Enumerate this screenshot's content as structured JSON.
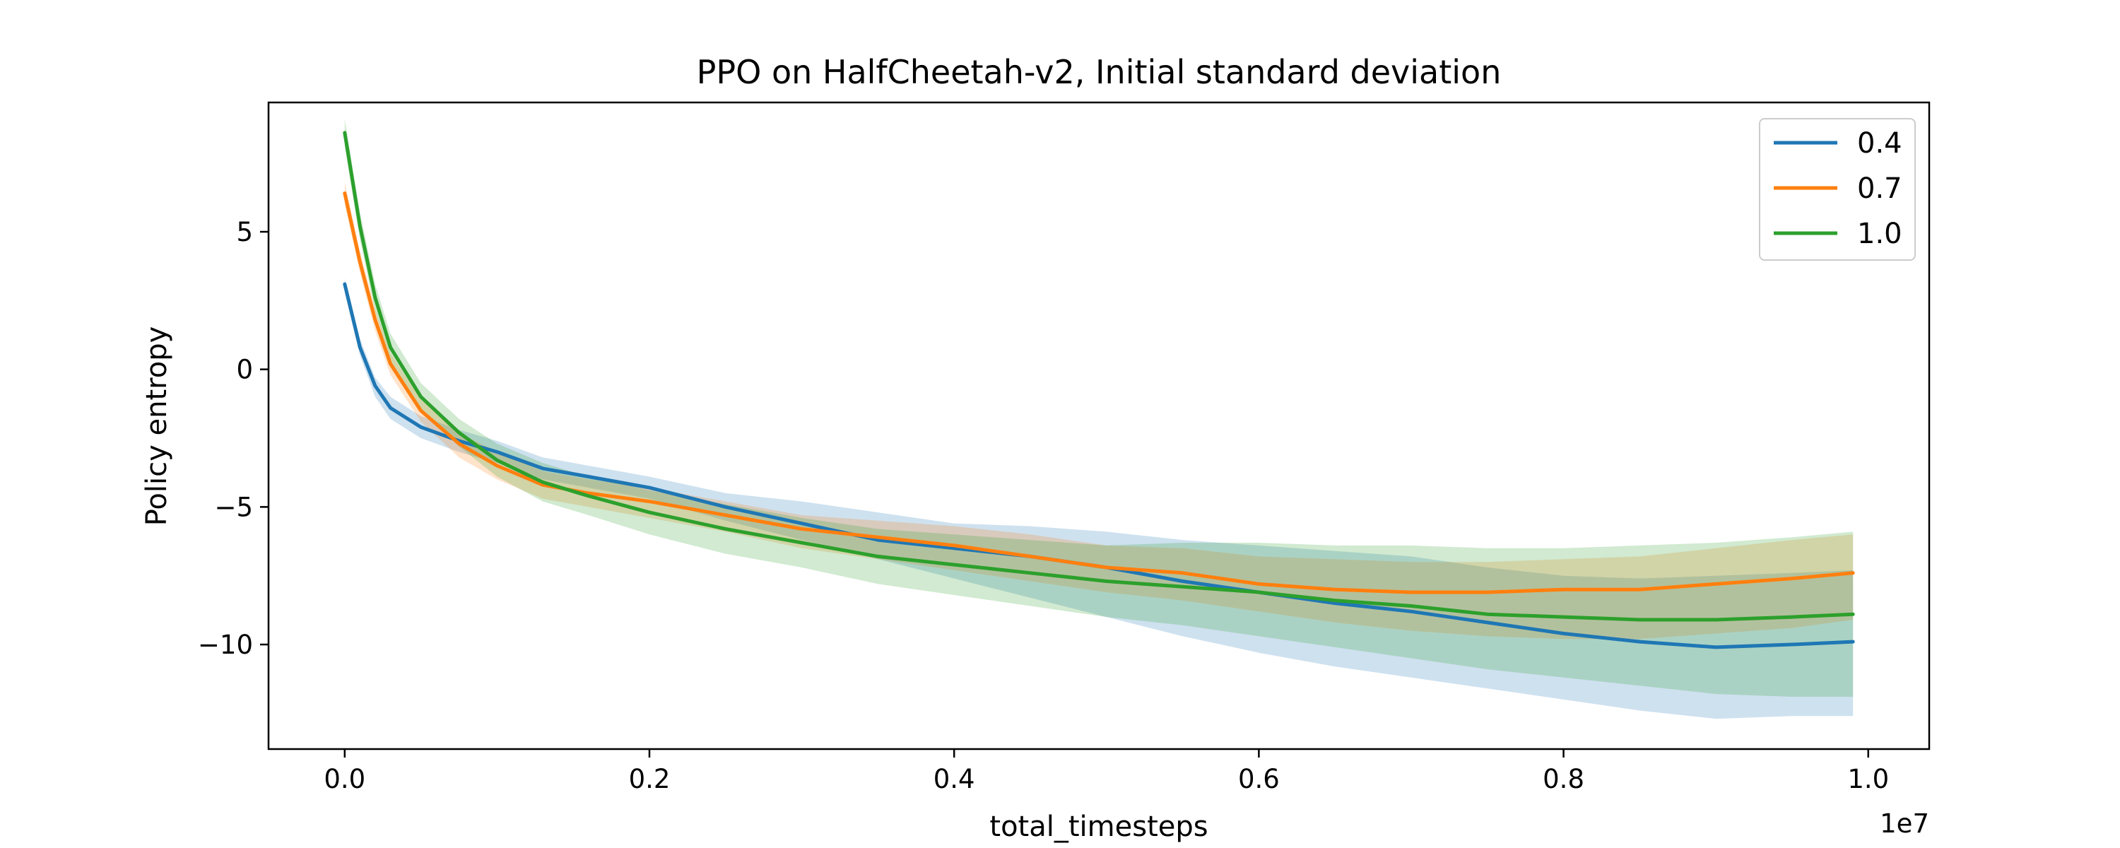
{
  "chart_data": {
    "type": "line",
    "title": "PPO on HalfCheetah-v2, Initial standard deviation",
    "xlabel": "total_timesteps",
    "ylabel": "Policy entropy",
    "x_offset_label": "1e7",
    "xlim": [
      -0.05,
      1.04
    ],
    "ylim": [
      -13.8,
      9.7
    ],
    "x_ticks": [
      0.0,
      0.2,
      0.4,
      0.6,
      0.8,
      1.0
    ],
    "x_tick_labels": [
      "0.0",
      "0.2",
      "0.4",
      "0.6",
      "0.8",
      "1.0"
    ],
    "y_ticks": [
      5,
      0,
      -5,
      -10
    ],
    "y_tick_labels": [
      "5",
      "0",
      "−5",
      "−10"
    ],
    "grid": false,
    "legend_position": "top-right",
    "x": [
      0.0,
      0.01,
      0.02,
      0.03,
      0.05,
      0.075,
      0.1,
      0.13,
      0.16,
      0.2,
      0.25,
      0.3,
      0.35,
      0.4,
      0.45,
      0.5,
      0.55,
      0.6,
      0.65,
      0.7,
      0.75,
      0.8,
      0.85,
      0.9,
      0.95,
      0.99
    ],
    "series": [
      {
        "name": "0.4",
        "color": "#1f77b4",
        "values": [
          3.1,
          0.8,
          -0.6,
          -1.4,
          -2.1,
          -2.6,
          -3.0,
          -3.6,
          -3.9,
          -4.3,
          -5.0,
          -5.6,
          -6.2,
          -6.5,
          -6.8,
          -7.2,
          -7.7,
          -8.1,
          -8.5,
          -8.8,
          -9.2,
          -9.6,
          -9.9,
          -10.1,
          -10.0,
          -9.9
        ],
        "lower": [
          2.8,
          0.5,
          -1.0,
          -1.8,
          -2.5,
          -3.0,
          -3.4,
          -4.0,
          -4.3,
          -4.7,
          -5.5,
          -6.2,
          -6.9,
          -7.6,
          -8.3,
          -9.0,
          -9.7,
          -10.3,
          -10.8,
          -11.2,
          -11.6,
          -12.0,
          -12.4,
          -12.7,
          -12.6,
          -12.6
        ],
        "upper": [
          3.3,
          1.1,
          -0.3,
          -1.0,
          -1.7,
          -2.2,
          -2.6,
          -3.2,
          -3.5,
          -3.9,
          -4.5,
          -4.8,
          -5.2,
          -5.6,
          -5.7,
          -5.9,
          -6.2,
          -6.4,
          -6.6,
          -6.8,
          -7.2,
          -7.5,
          -7.6,
          -7.5,
          -7.4,
          -7.3
        ]
      },
      {
        "name": "0.7",
        "color": "#ff7f0e",
        "values": [
          6.4,
          3.9,
          1.8,
          0.2,
          -1.5,
          -2.7,
          -3.5,
          -4.2,
          -4.5,
          -4.8,
          -5.3,
          -5.8,
          -6.1,
          -6.4,
          -6.8,
          -7.2,
          -7.4,
          -7.8,
          -8.0,
          -8.1,
          -8.1,
          -8.0,
          -8.0,
          -7.8,
          -7.6,
          -7.4
        ],
        "lower": [
          6.0,
          3.5,
          1.4,
          -0.2,
          -1.9,
          -3.2,
          -4.0,
          -4.7,
          -5.0,
          -5.4,
          -5.9,
          -6.5,
          -6.9,
          -7.3,
          -7.7,
          -8.1,
          -8.4,
          -8.8,
          -9.2,
          -9.5,
          -9.7,
          -9.8,
          -9.8,
          -9.6,
          -9.4,
          -9.1
        ],
        "upper": [
          6.8,
          4.3,
          2.2,
          0.6,
          -1.1,
          -2.3,
          -3.0,
          -3.7,
          -4.0,
          -4.3,
          -4.8,
          -5.3,
          -5.5,
          -5.7,
          -6.0,
          -6.4,
          -6.5,
          -6.8,
          -6.9,
          -7.0,
          -7.0,
          -6.9,
          -6.8,
          -6.5,
          -6.2,
          -6.0
        ]
      },
      {
        "name": "1.0",
        "color": "#2ca02c",
        "values": [
          8.6,
          5.2,
          2.6,
          0.8,
          -1.0,
          -2.3,
          -3.3,
          -4.1,
          -4.6,
          -5.2,
          -5.8,
          -6.3,
          -6.8,
          -7.1,
          -7.4,
          -7.7,
          -7.9,
          -8.1,
          -8.4,
          -8.6,
          -8.9,
          -9.0,
          -9.1,
          -9.1,
          -9.0,
          -8.9
        ],
        "lower": [
          8.1,
          4.7,
          2.1,
          0.3,
          -1.5,
          -2.8,
          -3.9,
          -4.8,
          -5.3,
          -6.0,
          -6.7,
          -7.2,
          -7.8,
          -8.2,
          -8.6,
          -9.0,
          -9.3,
          -9.7,
          -10.1,
          -10.5,
          -10.9,
          -11.2,
          -11.5,
          -11.8,
          -11.9,
          -11.9
        ],
        "upper": [
          9.1,
          5.7,
          3.1,
          1.3,
          -0.5,
          -1.8,
          -2.7,
          -3.4,
          -3.9,
          -4.4,
          -4.9,
          -5.4,
          -5.8,
          -6.0,
          -6.2,
          -6.4,
          -6.3,
          -6.3,
          -6.4,
          -6.4,
          -6.5,
          -6.5,
          -6.4,
          -6.3,
          -6.1,
          -5.9
        ]
      }
    ]
  }
}
